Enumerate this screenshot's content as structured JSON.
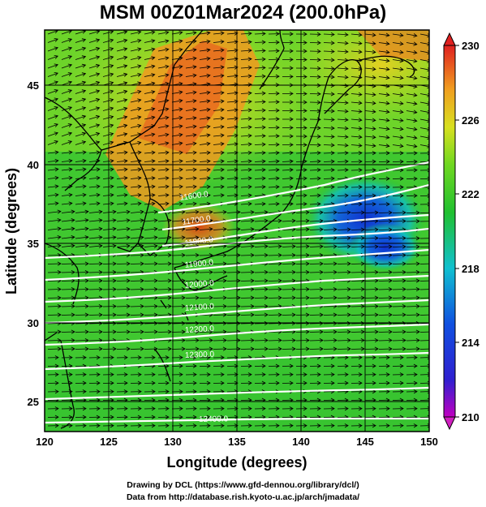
{
  "title": "MSM 00Z01Mar2024 (200.0hPa)",
  "xlabel": "Longitude (degrees)",
  "ylabel": "Latitude  (degrees)",
  "footer": {
    "line1": "Drawing by DCL (https://www.gfd-dennou.org/library/dcl/)",
    "line2": "Data from http://database.rish.kyoto-u.ac.jp/arch/jmadata/"
  },
  "chart_data": {
    "type": "heatmap",
    "xlim": [
      120,
      150
    ],
    "ylim": [
      22.4,
      47.6
    ],
    "x_ticks": [
      "120",
      "125",
      "130",
      "135",
      "140",
      "145",
      "150"
    ],
    "y_ticks": [
      "25",
      "30",
      "35",
      "40",
      "45"
    ],
    "colorbar": {
      "min": 210,
      "max": 230,
      "ticks": [
        "210",
        "214",
        "218",
        "222",
        "226",
        "230"
      ]
    },
    "contour_labels": [
      "11600.0",
      "11700.0",
      "11800.0",
      "11900.0",
      "12000.0",
      "12100.0",
      "12200.0",
      "12300.0",
      "12400.0"
    ],
    "grid": true
  },
  "colors": {
    "background": "#ffffff",
    "contour": "#ffffff",
    "arrows": "#000000"
  }
}
